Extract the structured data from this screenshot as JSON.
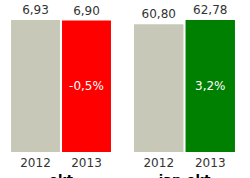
{
  "chart_data": [
    {
      "type": "bar",
      "title": "okt",
      "categories": [
        "2012",
        "2013"
      ],
      "values": [
        6.93,
        6.9
      ],
      "value_labels": [
        "6,93",
        "6,90"
      ],
      "colors": [
        "#c8c8b8",
        "#ff0000"
      ],
      "annotations": [
        {
          "category": "2013",
          "text": "-0,5%"
        }
      ],
      "ylim": [
        0,
        6.93
      ],
      "tick_labels": "x",
      "data_labels": true,
      "grid": false
    },
    {
      "type": "bar",
      "title": "jan-okt",
      "categories": [
        "2012",
        "2013"
      ],
      "values": [
        60.8,
        62.78
      ],
      "value_labels": [
        "60,80",
        "62,78"
      ],
      "colors": [
        "#c8c8b8",
        "#008000"
      ],
      "annotations": [
        {
          "category": "2013",
          "text": "3,2%"
        }
      ],
      "ylim": [
        0,
        62.78
      ],
      "tick_labels": "x",
      "data_labels": true,
      "grid": false
    }
  ]
}
